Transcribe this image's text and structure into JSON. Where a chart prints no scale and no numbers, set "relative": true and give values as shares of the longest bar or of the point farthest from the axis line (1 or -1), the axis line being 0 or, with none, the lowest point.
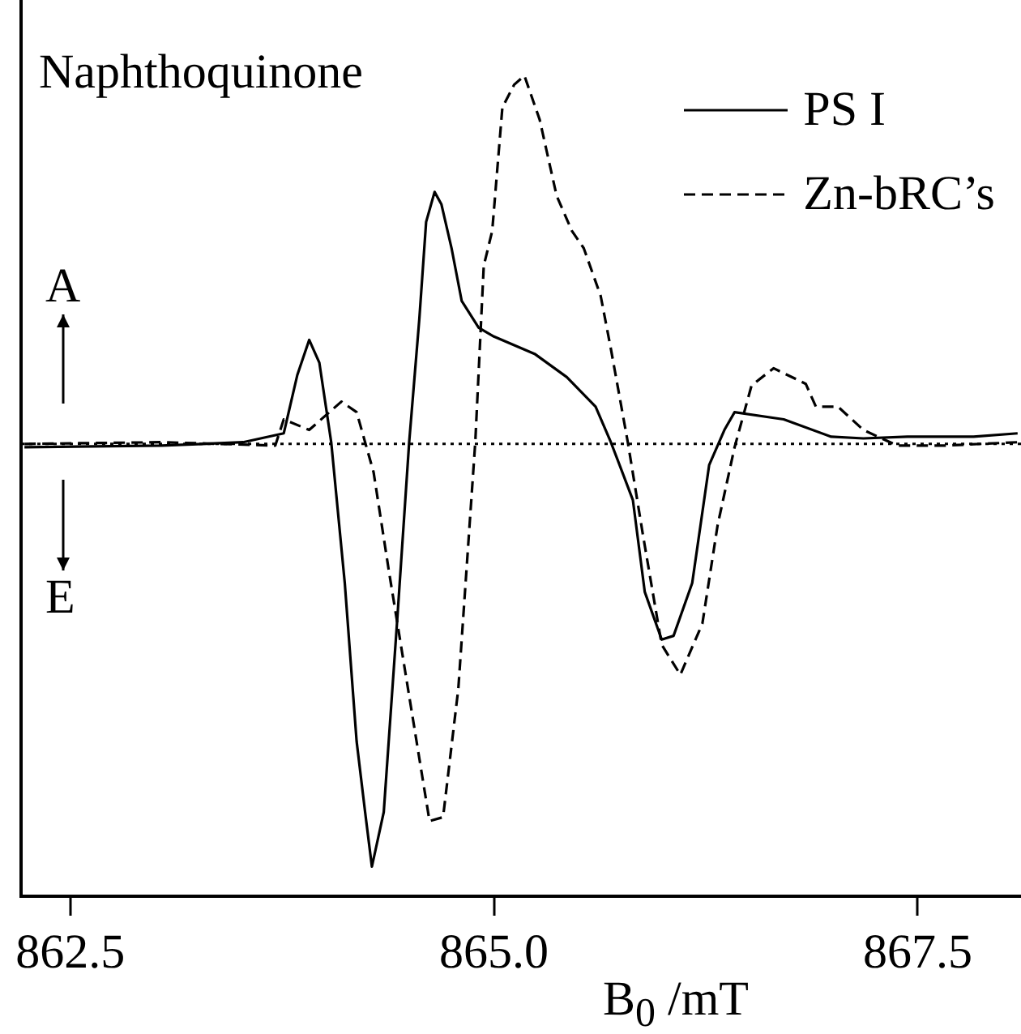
{
  "chart_data": {
    "type": "line",
    "title": "Naphthoquinone",
    "xlabel": "B$_{0}$ /mT",
    "relative": true,
    "annotations": [
      "A",
      "E"
    ],
    "xlim": [
      862.21,
      868.11
    ],
    "xticks": [
      {
        "value": 862.5,
        "label": "862.5"
      },
      {
        "value": 865.0,
        "label": "865.0"
      },
      {
        "value": 867.5,
        "label": "867.5"
      }
    ],
    "series": [
      {
        "name": "PS I",
        "color": "#000000",
        "line_style": "solid",
        "x": [
          862.23,
          863.04,
          863.52,
          863.76,
          863.84,
          863.91,
          863.97,
          864.04,
          864.12,
          864.19,
          864.24,
          864.28,
          864.35,
          864.43,
          864.5,
          864.56,
          864.6,
          864.65,
          864.69,
          864.75,
          864.81,
          864.91,
          865.0,
          865.24,
          865.43,
          865.6,
          865.69,
          865.82,
          865.89,
          865.99,
          866.06,
          866.17,
          866.27,
          866.36,
          866.42,
          866.71,
          866.99,
          867.18,
          867.44,
          867.83,
          868.09
        ],
        "values": [
          -0.008,
          -0.004,
          0.004,
          0.025,
          0.163,
          0.246,
          0.192,
          0.004,
          -0.329,
          -0.704,
          -0.871,
          -1,
          -0.871,
          -0.413,
          0.004,
          0.296,
          0.525,
          0.596,
          0.567,
          0.463,
          0.338,
          0.275,
          0.254,
          0.213,
          0.158,
          0.088,
          0.004,
          -0.133,
          -0.35,
          -0.463,
          -0.454,
          -0.329,
          -0.05,
          0.033,
          0.075,
          0.058,
          0.017,
          0.013,
          0.017,
          0.017,
          0.025
        ]
      },
      {
        "name": "Zn-bRC’s",
        "color": "#000000",
        "line_style": "dashed",
        "x": [
          862.23,
          863.04,
          863.71,
          863.76,
          863.91,
          864.1,
          864.19,
          864.29,
          864.38,
          864.51,
          864.62,
          864.7,
          864.79,
          864.89,
          864.94,
          864.99,
          865.05,
          865.12,
          865.18,
          865.27,
          865.37,
          865.46,
          865.53,
          865.63,
          865.69,
          865.79,
          865.88,
          865.99,
          866.1,
          866.23,
          866.32,
          866.42,
          866.52,
          866.65,
          866.84,
          866.9,
          867.03,
          867.18,
          867.38,
          867.66,
          868.09
        ],
        "values": [
          0.0,
          0.004,
          -0.004,
          0.058,
          0.033,
          0.1,
          0.075,
          -0.067,
          -0.3,
          -0.621,
          -0.892,
          -0.883,
          -0.579,
          0.004,
          0.421,
          0.504,
          0.796,
          0.85,
          0.871,
          0.767,
          0.587,
          0.504,
          0.463,
          0.35,
          0.225,
          0.004,
          -0.217,
          -0.475,
          -0.546,
          -0.425,
          -0.192,
          -0.008,
          0.138,
          0.179,
          0.142,
          0.088,
          0.088,
          0.033,
          -0.004,
          -0.004,
          0.004
        ]
      }
    ],
    "ref_lines": [
      {
        "axis": "y",
        "value": 0,
        "line_style": "dotted",
        "color": "#000000"
      }
    ],
    "legend": "top right",
    "grid": false,
    "marker": "none"
  }
}
